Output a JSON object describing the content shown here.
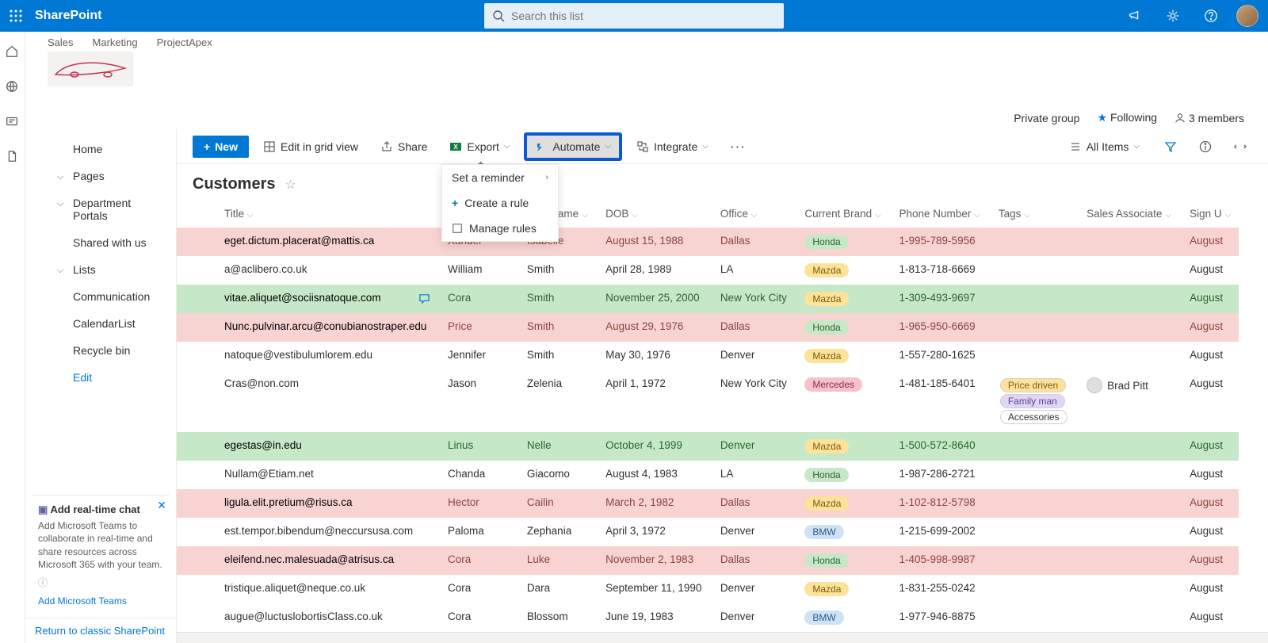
{
  "app_name": "SharePoint",
  "search_placeholder": "Search this list",
  "hub_nav": [
    "Sales",
    "Marketing",
    "ProjectApex"
  ],
  "site_meta": {
    "group_type": "Private group",
    "following": "Following",
    "members": "3 members"
  },
  "left_nav": {
    "items": [
      {
        "label": "Home",
        "expandable": false
      },
      {
        "label": "Pages",
        "expandable": true
      },
      {
        "label": "Department Portals",
        "expandable": true
      },
      {
        "label": "Shared with us",
        "expandable": false
      },
      {
        "label": "Lists",
        "expandable": true
      },
      {
        "label": "Communication",
        "expandable": false
      },
      {
        "label": "CalendarList",
        "expandable": false
      },
      {
        "label": "Recycle bin",
        "expandable": false
      },
      {
        "label": "Edit",
        "expandable": false,
        "edit": true
      }
    ],
    "teams_card": {
      "title": "Add real-time chat",
      "body": "Add Microsoft Teams to collaborate in real-time and share resources across Microsoft 365 with your team.",
      "link": "Add Microsoft Teams"
    },
    "classic_link": "Return to classic SharePoint"
  },
  "commands": {
    "new": "New",
    "edit_grid": "Edit in grid view",
    "share": "Share",
    "export": "Export",
    "automate": "Automate",
    "integrate": "Integrate",
    "view": "All Items"
  },
  "automate_menu": {
    "set_reminder": "Set a reminder",
    "create_rule": "Create a rule",
    "manage_rules": "Manage rules"
  },
  "list_title": "Customers",
  "columns": [
    "Title",
    "First Name",
    "Last Name",
    "DOB",
    "Office",
    "Current Brand",
    "Phone Number",
    "Tags",
    "Sales Associate",
    "Sign U"
  ],
  "brand_colors": {
    "Honda": {
      "bg": "#c7e8c8",
      "fg": "#2e6330"
    },
    "Mazda": {
      "bg": "#fde39a",
      "fg": "#7a5a10"
    },
    "Mercedes": {
      "bg": "#f6c1cc",
      "fg": "#8c2e44"
    },
    "BMW": {
      "bg": "#cfe2f3",
      "fg": "#2a5a8a"
    }
  },
  "tag_colors": {
    "Price driven": {
      "bg": "#fde39a",
      "fg": "#7a5a10"
    },
    "Family man": {
      "bg": "#e2d6f5",
      "fg": "#5a3e9e"
    },
    "Accessories": {
      "bg": "#ffffff",
      "fg": "#323130"
    }
  },
  "rows": [
    {
      "tone": "red",
      "title": "eget.dictum.placerat@mattis.ca",
      "first": "Xander",
      "last": "Isabelle",
      "dob": "August 15, 1988",
      "office": "Dallas",
      "brand": "Honda",
      "phone": "1-995-789-5956",
      "tags": [],
      "assoc": "",
      "sign": "August"
    },
    {
      "tone": "",
      "title": "a@aclibero.co.uk",
      "first": "William",
      "last": "Smith",
      "dob": "April 28, 1989",
      "office": "LA",
      "brand": "Mazda",
      "phone": "1-813-718-6669",
      "tags": [],
      "assoc": "",
      "sign": "August"
    },
    {
      "tone": "green",
      "title": "vitae.aliquet@sociisnatoque.com",
      "first": "Cora",
      "last": "Smith",
      "dob": "November 25, 2000",
      "office": "New York City",
      "brand": "Mazda",
      "phone": "1-309-493-9697",
      "tags": [],
      "assoc": "",
      "sign": "August",
      "comment": true
    },
    {
      "tone": "red",
      "title": "Nunc.pulvinar.arcu@conubianostraper.edu",
      "first": "Price",
      "last": "Smith",
      "dob": "August 29, 1976",
      "office": "Dallas",
      "brand": "Honda",
      "phone": "1-965-950-6669",
      "tags": [],
      "assoc": "",
      "sign": "August"
    },
    {
      "tone": "",
      "title": "natoque@vestibulumlorem.edu",
      "first": "Jennifer",
      "last": "Smith",
      "dob": "May 30, 1976",
      "office": "Denver",
      "brand": "Mazda",
      "phone": "1-557-280-1625",
      "tags": [],
      "assoc": "",
      "sign": "August"
    },
    {
      "tone": "",
      "title": "Cras@non.com",
      "first": "Jason",
      "last": "Zelenia",
      "dob": "April 1, 1972",
      "office": "New York City",
      "brand": "Mercedes",
      "phone": "1-481-185-6401",
      "tags": [
        "Price driven",
        "Family man",
        "Accessories"
      ],
      "assoc": "Brad Pitt",
      "sign": "August"
    },
    {
      "tone": "green",
      "title": "egestas@in.edu",
      "first": "Linus",
      "last": "Nelle",
      "dob": "October 4, 1999",
      "office": "Denver",
      "brand": "Mazda",
      "phone": "1-500-572-8640",
      "tags": [],
      "assoc": "",
      "sign": "August"
    },
    {
      "tone": "",
      "title": "Nullam@Etiam.net",
      "first": "Chanda",
      "last": "Giacomo",
      "dob": "August 4, 1983",
      "office": "LA",
      "brand": "Honda",
      "phone": "1-987-286-2721",
      "tags": [],
      "assoc": "",
      "sign": "August"
    },
    {
      "tone": "red",
      "title": "ligula.elit.pretium@risus.ca",
      "first": "Hector",
      "last": "Cailin",
      "dob": "March 2, 1982",
      "office": "Dallas",
      "brand": "Mazda",
      "phone": "1-102-812-5798",
      "tags": [],
      "assoc": "",
      "sign": "August"
    },
    {
      "tone": "",
      "title": "est.tempor.bibendum@neccursusa.com",
      "first": "Paloma",
      "last": "Zephania",
      "dob": "April 3, 1972",
      "office": "Denver",
      "brand": "BMW",
      "phone": "1-215-699-2002",
      "tags": [],
      "assoc": "",
      "sign": "August"
    },
    {
      "tone": "red",
      "title": "eleifend.nec.malesuada@atrisus.ca",
      "first": "Cora",
      "last": "Luke",
      "dob": "November 2, 1983",
      "office": "Dallas",
      "brand": "Honda",
      "phone": "1-405-998-9987",
      "tags": [],
      "assoc": "",
      "sign": "August"
    },
    {
      "tone": "",
      "title": "tristique.aliquet@neque.co.uk",
      "first": "Cora",
      "last": "Dara",
      "dob": "September 11, 1990",
      "office": "Denver",
      "brand": "Mazda",
      "phone": "1-831-255-0242",
      "tags": [],
      "assoc": "",
      "sign": "August"
    },
    {
      "tone": "",
      "title": "augue@luctuslobortisClass.co.uk",
      "first": "Cora",
      "last": "Blossom",
      "dob": "June 19, 1983",
      "office": "Denver",
      "brand": "BMW",
      "phone": "1-977-946-8875",
      "tags": [],
      "assoc": "",
      "sign": "August"
    }
  ]
}
